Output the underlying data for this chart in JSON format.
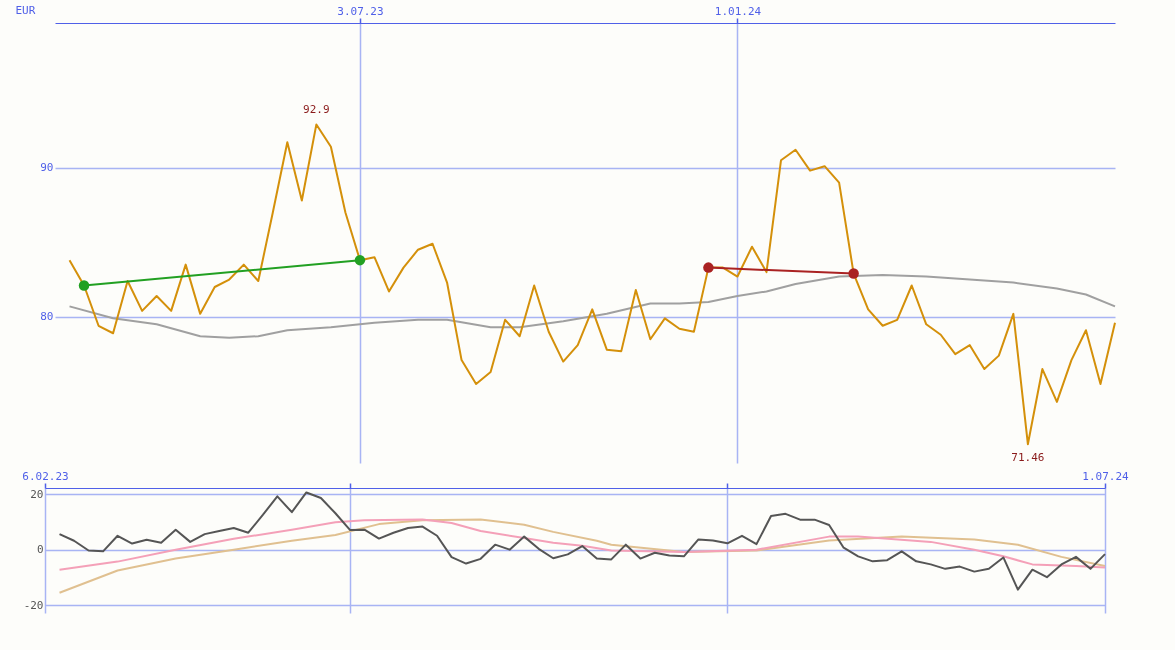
{
  "chart_data": [
    {
      "type": "line",
      "ylabel": "EUR",
      "xlim": [
        "2023-02-06",
        "2024-07-01"
      ],
      "xticks": [
        {
          "value": "2023-07-03",
          "label": "3.07.23"
        },
        {
          "value": "2024-01-01",
          "label": "1.01.24"
        }
      ],
      "ylim": [
        70.2,
        99.7
      ],
      "yticks": [
        80,
        90
      ],
      "grid": true,
      "annotations": [
        {
          "text": "92.9",
          "x": "2023-06-12",
          "y": 92.9
        },
        {
          "text": "71.46",
          "x": "2024-05-20",
          "y": 71.46
        }
      ],
      "series": [
        {
          "color": "#a0a0a0",
          "x": [
            "2023-02-13",
            "2023-03-06",
            "2023-03-27",
            "2023-04-17",
            "2023-05-01",
            "2023-05-15",
            "2023-05-29",
            "2023-06-19",
            "2023-07-10",
            "2023-07-31",
            "2023-08-14",
            "2023-09-04",
            "2023-09-18",
            "2023-10-09",
            "2023-10-30",
            "2023-11-20",
            "2023-12-04",
            "2023-12-18",
            "2024-01-01",
            "2024-01-15",
            "2024-01-29",
            "2024-02-19",
            "2024-03-11",
            "2024-04-01",
            "2024-04-22",
            "2024-05-13",
            "2024-06-03",
            "2024-06-17",
            "2024-07-01"
          ],
          "values": [
            80.7,
            79.9,
            79.5,
            78.7,
            78.6,
            78.7,
            79.1,
            79.3,
            79.6,
            79.8,
            79.8,
            79.3,
            79.3,
            79.7,
            80.2,
            80.9,
            80.9,
            81.0,
            81.4,
            81.7,
            82.2,
            82.7,
            82.8,
            82.7,
            82.5,
            82.3,
            81.9,
            81.5,
            80.7
          ]
        },
        {
          "color": "#d4900a",
          "x": [
            "2023-02-13",
            "2023-02-20",
            "2023-02-27",
            "2023-03-06",
            "2023-03-13",
            "2023-03-20",
            "2023-03-27",
            "2023-04-03",
            "2023-04-10",
            "2023-04-17",
            "2023-04-24",
            "2023-05-01",
            "2023-05-08",
            "2023-05-15",
            "2023-05-22",
            "2023-05-29",
            "2023-06-05",
            "2023-06-12",
            "2023-06-19",
            "2023-06-26",
            "2023-07-03",
            "2023-07-10",
            "2023-07-17",
            "2023-07-24",
            "2023-07-31",
            "2023-08-07",
            "2023-08-14",
            "2023-08-21",
            "2023-08-28",
            "2023-09-04",
            "2023-09-11",
            "2023-09-18",
            "2023-09-25",
            "2023-10-02",
            "2023-10-09",
            "2023-10-16",
            "2023-10-23",
            "2023-10-30",
            "2023-11-06",
            "2023-11-13",
            "2023-11-20",
            "2023-11-27",
            "2023-12-04",
            "2023-12-11",
            "2023-12-18",
            "2023-12-25",
            "2024-01-01",
            "2024-01-08",
            "2024-01-15",
            "2024-01-22",
            "2024-01-29",
            "2024-02-05",
            "2024-02-12",
            "2024-02-19",
            "2024-02-26",
            "2024-03-04",
            "2024-03-11",
            "2024-03-18",
            "2024-03-25",
            "2024-04-01",
            "2024-04-08",
            "2024-04-15",
            "2024-04-22",
            "2024-04-29",
            "2024-05-06",
            "2024-05-13",
            "2024-05-20",
            "2024-05-27",
            "2024-06-03",
            "2024-06-10",
            "2024-06-17",
            "2024-06-24",
            "2024-07-01"
          ],
          "values": [
            83.8,
            82.1,
            79.4,
            78.9,
            82.4,
            80.4,
            81.4,
            80.4,
            83.5,
            80.2,
            82.0,
            82.5,
            83.5,
            82.4,
            87.0,
            91.7,
            87.8,
            92.9,
            91.4,
            87.0,
            83.8,
            84.0,
            81.7,
            83.3,
            84.5,
            84.9,
            82.3,
            77.1,
            75.5,
            76.3,
            79.8,
            78.7,
            82.1,
            79.0,
            77.0,
            78.1,
            80.5,
            77.8,
            77.7,
            81.8,
            78.5,
            79.9,
            79.2,
            79.0,
            83.3,
            83.3,
            82.7,
            84.7,
            83.0,
            90.5,
            91.2,
            89.8,
            90.1,
            89.0,
            82.9,
            80.5,
            79.4,
            79.8,
            82.1,
            79.5,
            78.8,
            77.5,
            78.1,
            76.5,
            77.4,
            80.2,
            71.46,
            76.5,
            74.3,
            77.1,
            79.1,
            75.5,
            79.6
          ]
        },
        {
          "color": "#22a022",
          "marker": "circle",
          "x": [
            "2023-02-20",
            "2023-07-03"
          ],
          "values": [
            82.1,
            83.8
          ]
        },
        {
          "color": "#aa2222",
          "marker": "circle",
          "x": [
            "2023-12-18",
            "2024-02-26"
          ],
          "values": [
            83.3,
            82.9
          ]
        }
      ]
    },
    {
      "type": "line",
      "xlim": [
        "2023-02-06",
        "2024-07-01"
      ],
      "xticks": [
        {
          "value": "2023-02-06",
          "label": "6.02.23"
        },
        {
          "value": "2023-07-03",
          "label": null
        },
        {
          "value": "2024-01-01",
          "label": null
        },
        {
          "value": "2024-07-01",
          "label": "1.07.24"
        }
      ],
      "ylim": [
        -22.8,
        22.2
      ],
      "yticks": [
        -20,
        0,
        20
      ],
      "grid": true,
      "series": [
        {
          "color": "#e0c090",
          "x": [
            "2023-02-13",
            "2023-03-13",
            "2023-04-10",
            "2023-05-08",
            "2023-06-05",
            "2023-06-26",
            "2023-07-17",
            "2023-08-07",
            "2023-09-04",
            "2023-09-25",
            "2023-10-09",
            "2023-10-30",
            "2023-11-06",
            "2023-12-11",
            "2024-01-15",
            "2024-02-19",
            "2024-03-25",
            "2024-04-29",
            "2024-05-20",
            "2024-06-10",
            "2024-07-01"
          ],
          "values": [
            -15.5,
            -7.5,
            -3.2,
            0,
            3.2,
            5.3,
            9.2,
            10.6,
            10.9,
            9.0,
            6.4,
            3.2,
            1.8,
            -0.8,
            -0.3,
            3.3,
            4.7,
            3.7,
            1.8,
            -2.6,
            -5.9
          ]
        },
        {
          "color": "#f4a0b8",
          "x": [
            "2023-02-13",
            "2023-03-13",
            "2023-04-10",
            "2023-05-08",
            "2023-06-05",
            "2023-06-26",
            "2023-07-10",
            "2023-08-07",
            "2023-08-21",
            "2023-09-04",
            "2023-09-25",
            "2023-10-09",
            "2023-10-23",
            "2023-11-06",
            "2023-12-11",
            "2024-01-15",
            "2024-02-19",
            "2024-03-04",
            "2024-04-08",
            "2024-04-29",
            "2024-05-13",
            "2024-05-27",
            "2024-06-17",
            "2024-07-01"
          ],
          "values": [
            -7.2,
            -4.3,
            0,
            3.9,
            7.2,
            9.9,
            10.6,
            10.9,
            9.6,
            6.7,
            4.2,
            2.5,
            1.4,
            -0.3,
            -0.8,
            0,
            4.7,
            4.7,
            2.8,
            0,
            -2.4,
            -5.3,
            -5.9,
            -6.4
          ]
        },
        {
          "color": "#555555",
          "x": [
            "2023-02-13",
            "2023-02-20",
            "2023-02-27",
            "2023-03-06",
            "2023-03-13",
            "2023-03-20",
            "2023-03-27",
            "2023-04-03",
            "2023-04-10",
            "2023-04-17",
            "2023-04-24",
            "2023-05-01",
            "2023-05-08",
            "2023-05-15",
            "2023-05-22",
            "2023-05-29",
            "2023-06-05",
            "2023-06-12",
            "2023-06-19",
            "2023-06-26",
            "2023-07-03",
            "2023-07-10",
            "2023-07-17",
            "2023-07-24",
            "2023-07-31",
            "2023-08-07",
            "2023-08-14",
            "2023-08-21",
            "2023-08-28",
            "2023-09-04",
            "2023-09-11",
            "2023-09-18",
            "2023-09-25",
            "2023-10-02",
            "2023-10-09",
            "2023-10-16",
            "2023-10-23",
            "2023-10-30",
            "2023-11-06",
            "2023-11-13",
            "2023-11-20",
            "2023-11-27",
            "2023-12-04",
            "2023-12-11",
            "2023-12-18",
            "2023-12-25",
            "2024-01-01",
            "2024-01-08",
            "2024-01-15",
            "2024-01-22",
            "2024-01-29",
            "2024-02-05",
            "2024-02-12",
            "2024-02-19",
            "2024-02-26",
            "2024-03-04",
            "2024-03-11",
            "2024-03-18",
            "2024-03-25",
            "2024-04-01",
            "2024-04-08",
            "2024-04-15",
            "2024-04-22",
            "2024-04-29",
            "2024-05-06",
            "2024-05-13",
            "2024-05-20",
            "2024-05-27",
            "2024-06-03",
            "2024-06-10",
            "2024-06-17",
            "2024-06-24",
            "2024-07-01"
          ],
          "values": [
            5.6,
            3.2,
            -0.3,
            -0.6,
            5.0,
            2.2,
            3.6,
            2.5,
            7.2,
            2.8,
            5.6,
            6.7,
            7.8,
            6.1,
            12.5,
            19.2,
            13.5,
            20.6,
            18.6,
            13.1,
            7.1,
            7.2,
            4.0,
            6.1,
            7.8,
            8.3,
            5.0,
            -2.7,
            -5.0,
            -3.3,
            1.8,
            0,
            4.7,
            0.3,
            -3.1,
            -1.7,
            1.3,
            -3.2,
            -3.5,
            1.8,
            -3.2,
            -1.1,
            -2.1,
            -2.4,
            3.7,
            3.3,
            2.3,
            5.0,
            2.0,
            12.1,
            12.9,
            10.8,
            10.8,
            8.9,
            0.7,
            -2.4,
            -4.2,
            -3.8,
            -0.6,
            -4.2,
            -5.3,
            -6.9,
            -6.1,
            -7.9,
            -6.9,
            -2.8,
            -14.4,
            -7.2,
            -9.9,
            -5.3,
            -2.6,
            -6.9,
            -1.6
          ]
        }
      ]
    }
  ]
}
